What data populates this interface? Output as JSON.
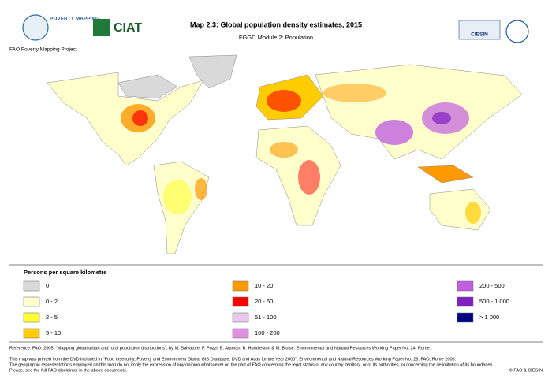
{
  "header": {
    "title": "Map 2.3: Global population density estimates, 2015",
    "subtitle": "FGGD Module 2: Population",
    "project": "FAO Poverty Mapping Project",
    "logos": [
      "POVERTY MAPPING",
      "CIAT",
      "CIESIN"
    ]
  },
  "legend": {
    "title": "Persons per square kilometre",
    "items": [
      {
        "label": "0",
        "color": "#d9d9d9"
      },
      {
        "label": "0 - 2",
        "color": "#ffffcc"
      },
      {
        "label": "2 - 5",
        "color": "#ffff33"
      },
      {
        "label": "5 - 10",
        "color": "#ffcc00"
      },
      {
        "label": "10 - 20",
        "color": "#ff9900"
      },
      {
        "label": "20 - 50",
        "color": "#ff0000"
      },
      {
        "label": "51 - 100",
        "color": "#e8c8ec"
      },
      {
        "label": "100 - 200",
        "color": "#e090e0"
      },
      {
        "label": "200 - 500",
        "color": "#c060e0"
      },
      {
        "label": "500 - 1 000",
        "color": "#8020c0"
      },
      {
        "label": "> 1 000",
        "color": "#000080"
      }
    ]
  },
  "footer": {
    "reference": "Reference: FAO. 2005. \"Mapping global urban and rural population distributions\", by M. Salvatore, F. Pozzi, E. Ataman, B. Huddleston & M. Bloise. Environmental and Natural Resources Working Paper No. 24. Rome.",
    "notes": [
      "This map was printed from the DVD included in \"Food Insecurity, Poverty and Environment Global GIS Database: DVD and Atlas for the Year 2000\", Environmental and Natural Resources Working Paper No. 26. FAO, Rome 2006.",
      "The geographic representations employed on this map do not imply the expression of any opinion whatsoever on the part of FAO concerning the legal status of any country, territory, or of its authorities, or concerning the delimitation of its boundaries.",
      "Please, see the full FAO disclaimer in the above documents."
    ],
    "copyright": "© FAO & CIESIN"
  }
}
